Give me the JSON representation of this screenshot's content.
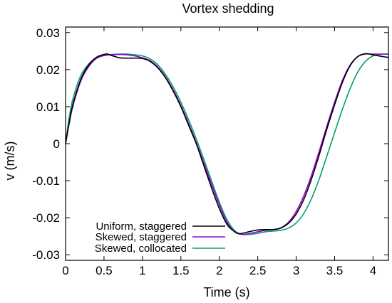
{
  "chart_data": {
    "type": "line",
    "title": "Vortex shedding",
    "xlabel": "Time (s)",
    "ylabel": "v (m/s)",
    "xlim": [
      0,
      4.2
    ],
    "ylim": [
      -0.0315,
      0.0315
    ],
    "xticks": [
      0,
      0.5,
      1,
      1.5,
      2,
      2.5,
      3,
      3.5,
      4
    ],
    "xtick_labels": [
      "0",
      "0.5",
      "1",
      "1.5",
      "2",
      "2.5",
      "3",
      "3.5",
      "4"
    ],
    "yticks": [
      -0.03,
      -0.02,
      -0.01,
      0,
      0.01,
      0.02,
      0.03
    ],
    "ytick_labels": [
      "-0.03",
      "-0.02",
      "-0.01",
      "0",
      "0.01",
      "0.02",
      "0.03"
    ],
    "grid": false,
    "legend_position": "bottom-left",
    "series": [
      {
        "name": "Uniform, staggered",
        "color": "#000000",
        "x": [
          0,
          0.05,
          0.1,
          0.2,
          0.3,
          0.4,
          0.5,
          0.55,
          0.6,
          0.7,
          0.8,
          0.9,
          1.0,
          1.1,
          1.2,
          1.3,
          1.4,
          1.5,
          1.6,
          1.7,
          1.8,
          1.9,
          2.0,
          2.1,
          2.2,
          2.25,
          2.3,
          2.4,
          2.5,
          2.6,
          2.7,
          2.8,
          2.9,
          3.0,
          3.1,
          3.2,
          3.3,
          3.4,
          3.5,
          3.6,
          3.7,
          3.8,
          3.9,
          4.0,
          4.1,
          4.2
        ],
        "y": [
          0,
          0.006,
          0.011,
          0.0175,
          0.0212,
          0.0233,
          0.0241,
          0.0242,
          0.0238,
          0.0232,
          0.0231,
          0.0231,
          0.023,
          0.0222,
          0.0205,
          0.0178,
          0.0142,
          0.01,
          0.005,
          0.0,
          -0.006,
          -0.012,
          -0.0175,
          -0.0218,
          -0.0238,
          -0.0243,
          -0.0242,
          -0.0237,
          -0.0233,
          -0.0232,
          -0.0232,
          -0.0228,
          -0.0215,
          -0.019,
          -0.015,
          -0.0095,
          -0.003,
          0.004,
          0.0105,
          0.0165,
          0.021,
          0.0235,
          0.0243,
          0.024,
          0.0236,
          0.0233
        ]
      },
      {
        "name": "Skewed, staggered",
        "color": "#9400d3",
        "x": [
          0,
          0.05,
          0.1,
          0.2,
          0.3,
          0.4,
          0.5,
          0.6,
          0.7,
          0.8,
          0.9,
          1.0,
          1.1,
          1.2,
          1.3,
          1.4,
          1.5,
          1.6,
          1.7,
          1.8,
          1.9,
          2.0,
          2.1,
          2.2,
          2.3,
          2.4,
          2.5,
          2.6,
          2.7,
          2.8,
          2.9,
          3.0,
          3.1,
          3.2,
          3.3,
          3.4,
          3.5,
          3.6,
          3.7,
          3.8,
          3.9,
          4.0,
          4.1,
          4.2
        ],
        "y": [
          0,
          0.0058,
          0.0105,
          0.017,
          0.0208,
          0.023,
          0.0238,
          0.024,
          0.0241,
          0.024,
          0.0237,
          0.0232,
          0.0224,
          0.0207,
          0.018,
          0.0145,
          0.0103,
          0.0055,
          0.0003,
          -0.0053,
          -0.011,
          -0.0165,
          -0.0212,
          -0.0238,
          -0.0245,
          -0.0242,
          -0.0238,
          -0.0234,
          -0.0232,
          -0.0227,
          -0.0212,
          -0.0183,
          -0.014,
          -0.0085,
          -0.002,
          0.0048,
          0.0112,
          0.017,
          0.0212,
          0.0235,
          0.0242,
          0.0242,
          0.0242,
          0.0242
        ]
      },
      {
        "name": "Skewed, collocated",
        "color": "#009e73",
        "x": [
          0,
          0.05,
          0.1,
          0.2,
          0.3,
          0.4,
          0.5,
          0.6,
          0.7,
          0.8,
          0.9,
          1.0,
          1.1,
          1.2,
          1.3,
          1.4,
          1.5,
          1.6,
          1.7,
          1.8,
          1.9,
          2.0,
          2.1,
          2.2,
          2.3,
          2.4,
          2.5,
          2.6,
          2.7,
          2.8,
          2.9,
          3.0,
          3.1,
          3.2,
          3.3,
          3.4,
          3.5,
          3.6,
          3.7,
          3.8,
          3.9,
          4.0,
          4.1,
          4.2
        ],
        "y": [
          0,
          0.0075,
          0.0125,
          0.0185,
          0.0215,
          0.0232,
          0.0238,
          0.0241,
          0.0242,
          0.0242,
          0.024,
          0.0237,
          0.0229,
          0.0213,
          0.0187,
          0.0153,
          0.0112,
          0.0065,
          0.0013,
          -0.0043,
          -0.0101,
          -0.0158,
          -0.0205,
          -0.0235,
          -0.0245,
          -0.0245,
          -0.0242,
          -0.0238,
          -0.0236,
          -0.0234,
          -0.0228,
          -0.0214,
          -0.0188,
          -0.0148,
          -0.0095,
          -0.0033,
          0.003,
          0.0092,
          0.0148,
          0.0193,
          0.0222,
          0.0237,
          0.0241,
          0.0242
        ]
      }
    ]
  }
}
